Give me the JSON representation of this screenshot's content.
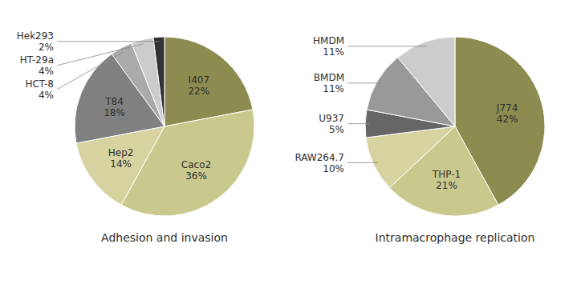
{
  "chart_data": [
    {
      "type": "pie",
      "title": "Adhesion and invasion",
      "categories": [
        "I407",
        "Caco2",
        "Hep2",
        "T84",
        "HCT-8",
        "HT-29a",
        "Hek293"
      ],
      "values": [
        22,
        36,
        14,
        18,
        4,
        4,
        2
      ],
      "value_labels": [
        "22%",
        "36%",
        "14%",
        "18%",
        "4%",
        "4%",
        "2%"
      ],
      "colors": [
        "#8c8c50",
        "#c9c98e",
        "#d6d3a0",
        "#808080",
        "#aaaaaa",
        "#cccccc",
        "#333333"
      ],
      "data_labels": true
    },
    {
      "type": "pie",
      "title": "Intramacrophage replication",
      "categories": [
        "J774",
        "THP-1",
        "RAW264.7",
        "U937",
        "BMDM",
        "HMDM"
      ],
      "values": [
        42,
        21,
        10,
        5,
        11,
        11
      ],
      "value_labels": [
        "42%",
        "21%",
        "10%",
        "5%",
        "11%",
        "11%"
      ],
      "colors": [
        "#8c8c50",
        "#c9c98e",
        "#d6d3a0",
        "#666666",
        "#999999",
        "#cccccc"
      ],
      "data_labels": true
    }
  ]
}
